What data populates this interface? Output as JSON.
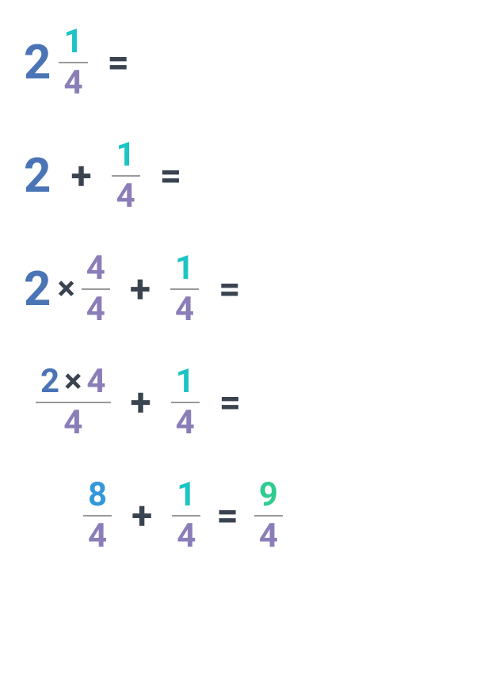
{
  "colors": {
    "blue": "#4a74b5",
    "teal": "#1cc4c4",
    "purple": "#8b7eb8",
    "dark": "#3a4350",
    "green": "#2ecc8f",
    "brightblue": "#3598db",
    "bar": "#999999",
    "bg": "#ffffff"
  },
  "typography": {
    "font_large": 60,
    "font_med": 42,
    "font_plus": 48,
    "font_eq": 48,
    "weight": 700
  },
  "rows": [
    {
      "id": "r1",
      "items": [
        {
          "type": "num",
          "value": "2",
          "color": "blue",
          "size": 60
        },
        {
          "type": "frac",
          "num": "1",
          "num_color": "teal",
          "den": "4",
          "den_color": "purple",
          "size": 42,
          "ml": 10
        },
        {
          "type": "op",
          "value": "=",
          "color": "dark",
          "size": 48,
          "ml": 25
        }
      ]
    },
    {
      "id": "r2",
      "items": [
        {
          "type": "num",
          "value": "2",
          "color": "blue",
          "size": 60
        },
        {
          "type": "op",
          "value": "+",
          "color": "dark",
          "size": 48,
          "ml": 25
        },
        {
          "type": "frac",
          "num": "1",
          "num_color": "teal",
          "den": "4",
          "den_color": "purple",
          "size": 42,
          "ml": 25
        },
        {
          "type": "op",
          "value": "=",
          "color": "dark",
          "size": 48,
          "ml": 25
        }
      ]
    },
    {
      "id": "r3",
      "items": [
        {
          "type": "num",
          "value": "2",
          "color": "blue",
          "size": 60
        },
        {
          "type": "op",
          "value": "×",
          "color": "dark",
          "size": 42,
          "ml": 8
        },
        {
          "type": "frac",
          "num": "4",
          "num_color": "purple",
          "den": "4",
          "den_color": "purple",
          "size": 42,
          "ml": 8
        },
        {
          "type": "op",
          "value": "+",
          "color": "dark",
          "size": 48,
          "ml": 25
        },
        {
          "type": "frac",
          "num": "1",
          "num_color": "teal",
          "den": "4",
          "den_color": "purple",
          "size": 42,
          "ml": 25
        },
        {
          "type": "op",
          "value": "=",
          "color": "dark",
          "size": 48,
          "ml": 25
        }
      ]
    },
    {
      "id": "r4",
      "items": [
        {
          "type": "frac_expr",
          "num_parts": [
            {
              "value": "2",
              "color": "blue"
            },
            {
              "value": "×",
              "color": "dark"
            },
            {
              "value": "4",
              "color": "purple"
            }
          ],
          "den": "4",
          "den_color": "purple",
          "size": 42,
          "ml": 15
        },
        {
          "type": "op",
          "value": "+",
          "color": "dark",
          "size": 48,
          "ml": 25
        },
        {
          "type": "frac",
          "num": "1",
          "num_color": "teal",
          "den": "4",
          "den_color": "purple",
          "size": 42,
          "ml": 25
        },
        {
          "type": "op",
          "value": "=",
          "color": "dark",
          "size": 48,
          "ml": 25
        }
      ]
    },
    {
      "id": "r5",
      "items": [
        {
          "type": "spacer",
          "w": 75
        },
        {
          "type": "frac",
          "num": "8",
          "num_color": "brightblue",
          "den": "4",
          "den_color": "purple",
          "size": 42
        },
        {
          "type": "op",
          "value": "+",
          "color": "dark",
          "size": 48,
          "ml": 25
        },
        {
          "type": "frac",
          "num": "1",
          "num_color": "teal",
          "den": "4",
          "den_color": "purple",
          "size": 42,
          "ml": 25
        },
        {
          "type": "op",
          "value": "=",
          "color": "dark",
          "size": 48,
          "ml": 20
        },
        {
          "type": "frac",
          "num": "9",
          "num_color": "green",
          "den": "4",
          "den_color": "purple",
          "size": 42,
          "ml": 20
        }
      ]
    }
  ]
}
